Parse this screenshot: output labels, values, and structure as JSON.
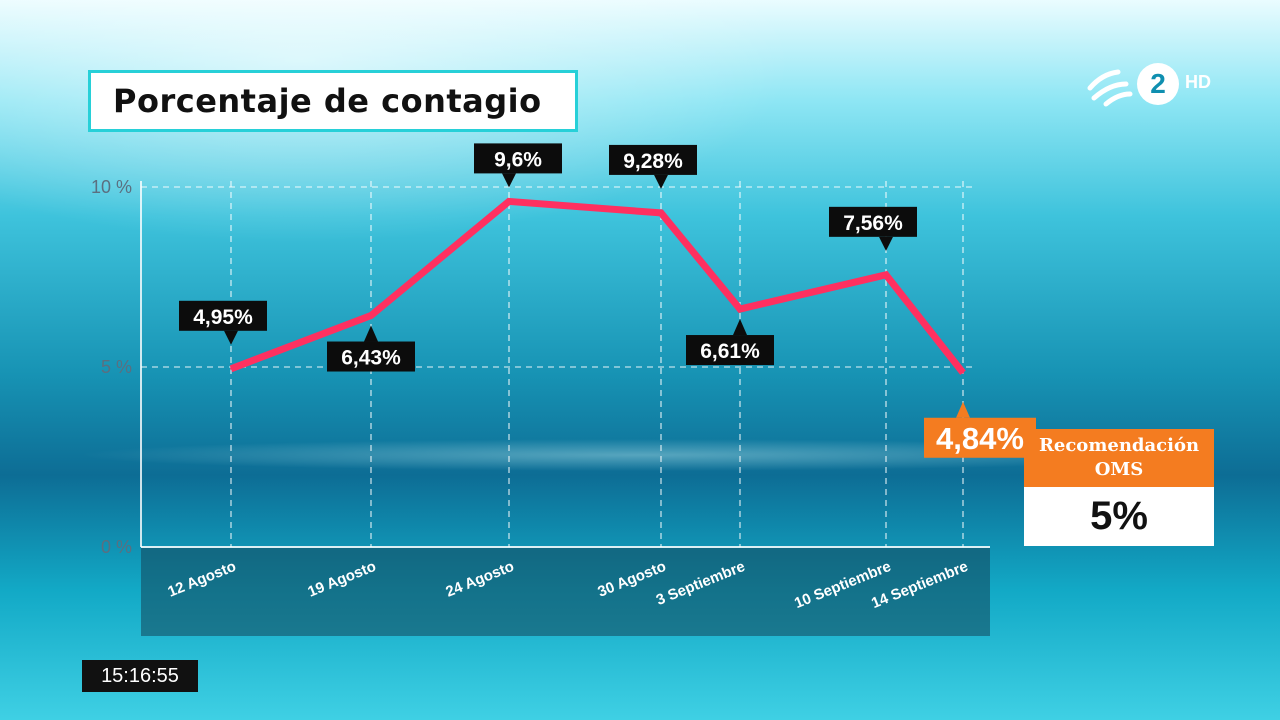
{
  "header": {
    "title": "Porcentaje de contagio"
  },
  "logo": {
    "channel_number": "2",
    "quality": "HD"
  },
  "chart_data": {
    "type": "line",
    "title": "Porcentaje de contagio",
    "categories": [
      "12 Agosto",
      "19 Agosto",
      "24 Agosto",
      "30 Agosto",
      "3 Septiembre",
      "10 Septiembre",
      "14 Septiembre"
    ],
    "values": [
      4.95,
      6.43,
      9.6,
      9.28,
      6.61,
      7.56,
      4.84
    ],
    "labels": [
      "4,95%",
      "6,43%",
      "9,6%",
      "9,28%",
      "6,61%",
      "7,56%",
      "4,84%"
    ],
    "yticks": [
      "0 %",
      "5 %",
      "10 %"
    ],
    "ylim": [
      0,
      10
    ],
    "grid": true,
    "line_color": "#ff3060",
    "highlight_color": "#f47c20"
  },
  "recommendation": {
    "title": "Recomendación OMS",
    "value": "5%"
  },
  "clock": {
    "time": "15:16:55"
  }
}
